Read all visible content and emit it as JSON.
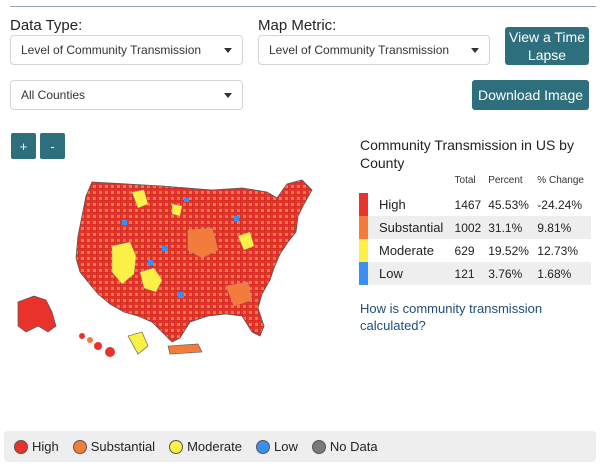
{
  "controls": {
    "data_type_label": "Data Type:",
    "data_type_value": "Level of Community Transmission",
    "map_metric_label": "Map Metric:",
    "map_metric_value": "Level of Community Transmission",
    "county_value": "All Counties",
    "time_lapse_label_line1": "View a Time",
    "time_lapse_label_line2": "Lapse",
    "download_label": "Download Image",
    "zoom_in_label": "+",
    "zoom_out_label": "-"
  },
  "panel": {
    "title": "Community Transmission in US by County",
    "headers": {
      "total": "Total",
      "percent": "Percent",
      "change": "% Change"
    },
    "rows": [
      {
        "name": "High",
        "total": "1467",
        "percent": "45.53%",
        "change": "-24.24%",
        "color": "#e8322b"
      },
      {
        "name": "Substantial",
        "total": "1002",
        "percent": "31.1%",
        "change": "9.81%",
        "color": "#f37b3c"
      },
      {
        "name": "Moderate",
        "total": "629",
        "percent": "19.52%",
        "change": "12.73%",
        "color": "#fbf046"
      },
      {
        "name": "Low",
        "total": "121",
        "percent": "3.76%",
        "change": "1.68%",
        "color": "#3a8ff0"
      }
    ],
    "link_text": "How is community transmission calculated?"
  },
  "legend": [
    {
      "label": "High",
      "color": "#e8322b"
    },
    {
      "label": "Substantial",
      "color": "#f37b3c"
    },
    {
      "label": "Moderate",
      "color": "#fbf046"
    },
    {
      "label": "Low",
      "color": "#3a8ff0"
    },
    {
      "label": "No Data",
      "color": "#7a7a7a"
    }
  ]
}
